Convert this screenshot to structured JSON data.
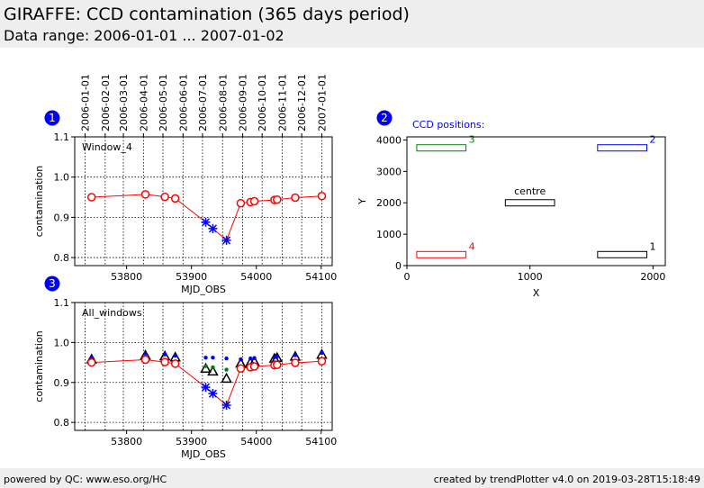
{
  "header": {
    "title": "GIRAFFE: CCD contamination (365 days period)",
    "subtitle": "Data range: 2006-01-01 ... 2007-01-02"
  },
  "footer": {
    "left": "powered by QC: www.eso.org/HC",
    "right": "created by trendPlotter v4.0 on 2019-03-28T15:18:49"
  },
  "colors": {
    "red": "#ff0000",
    "blue": "#0000ff",
    "green": "#008000",
    "black": "#000000",
    "badge": "#0000ff"
  },
  "chart_data": [
    {
      "badge": "1",
      "type": "scatter",
      "label": "Window_4",
      "xlabel": "MJD_OBS",
      "ylabel": "contamination",
      "xlim": [
        53720,
        54117
      ],
      "ylim": [
        0.78,
        1.1
      ],
      "x_ticks": [
        53800,
        53900,
        54000,
        54100
      ],
      "y_ticks": [
        0.8,
        0.9,
        1.0,
        1.1
      ],
      "y_tick_labels": [
        "0.8",
        "0.9",
        "1.0",
        "1.1"
      ],
      "top_date_ticks": [
        {
          "mjd": 53736,
          "label": "2006-01-01"
        },
        {
          "mjd": 53767,
          "label": "2006-02-01"
        },
        {
          "mjd": 53795,
          "label": "2006-03-01"
        },
        {
          "mjd": 53826,
          "label": "2006-04-01"
        },
        {
          "mjd": 53856,
          "label": "2006-05-01"
        },
        {
          "mjd": 53887,
          "label": "2006-06-01"
        },
        {
          "mjd": 53917,
          "label": "2006-07-01"
        },
        {
          "mjd": 53948,
          "label": "2006-08-01"
        },
        {
          "mjd": 53979,
          "label": "2006-09-01"
        },
        {
          "mjd": 54009,
          "label": "2006-10-01"
        },
        {
          "mjd": 54040,
          "label": "2006-11-01"
        },
        {
          "mjd": 54070,
          "label": "2006-12-01"
        },
        {
          "mjd": 54101,
          "label": "2007-01-01"
        }
      ],
      "series": [
        {
          "name": "red",
          "color": "#ff0000",
          "marker": "circle",
          "line": true,
          "x": [
            53746,
            53829,
            53859,
            53875,
            53976,
            53991,
            53997,
            54028,
            54032,
            54060,
            54101
          ],
          "y": [
            0.95,
            0.957,
            0.951,
            0.947,
            0.935,
            0.938,
            0.94,
            0.943,
            0.944,
            0.949,
            0.953
          ]
        },
        {
          "name": "blue",
          "color": "#0000ff",
          "marker": "star",
          "line": true,
          "x": [
            53922,
            53933,
            53954
          ],
          "y": [
            0.888,
            0.872,
            0.843
          ]
        }
      ],
      "connector": {
        "x": [
          53875,
          53922,
          53933,
          53954,
          53976
        ],
        "y": [
          0.947,
          0.888,
          0.872,
          0.843,
          0.935
        ]
      }
    },
    {
      "badge": "2",
      "type": "scatter",
      "label": "CCD positions:",
      "xlabel": "X",
      "ylabel": "Y",
      "xlim": [
        0,
        2100
      ],
      "ylim": [
        0,
        4100
      ],
      "x_ticks": [
        0,
        1000,
        2000
      ],
      "y_ticks": [
        0,
        1000,
        2000,
        3000,
        4000
      ],
      "boxes": [
        {
          "x0": 1550,
          "y0": 250,
          "x1": 1950,
          "y1": 450,
          "color": "#000000",
          "label": "1"
        },
        {
          "x0": 1550,
          "y0": 3650,
          "x1": 1950,
          "y1": 3850,
          "color": "#0000ff",
          "label": "2"
        },
        {
          "x0": 80,
          "y0": 3650,
          "x1": 480,
          "y1": 3850,
          "color": "#008000",
          "label": "3"
        },
        {
          "x0": 80,
          "y0": 250,
          "x1": 480,
          "y1": 450,
          "color": "#ff0000",
          "label": "4"
        },
        {
          "x0": 800,
          "y0": 1900,
          "x1": 1200,
          "y1": 2100,
          "color": "#000000",
          "label": "centre"
        }
      ]
    },
    {
      "badge": "3",
      "type": "scatter",
      "label": "All_windows",
      "xlabel": "MJD_OBS",
      "ylabel": "contamination",
      "xlim": [
        53720,
        54117
      ],
      "ylim": [
        0.78,
        1.1
      ],
      "x_ticks": [
        53800,
        53900,
        54000,
        54100
      ],
      "y_ticks": [
        0.8,
        0.9,
        1.0,
        1.1
      ],
      "y_tick_labels": [
        "0.8",
        "0.9",
        "1.0",
        "1.1"
      ],
      "series": [
        {
          "name": "window_1",
          "color": "#000000",
          "marker": "triangle",
          "line": false,
          "x": [
            53746,
            53829,
            53859,
            53875,
            53922,
            53933,
            53954,
            53976,
            53991,
            53997,
            54028,
            54032,
            54060,
            54101
          ],
          "y": [
            0.958,
            0.968,
            0.966,
            0.963,
            0.935,
            0.928,
            0.91,
            0.948,
            0.95,
            0.952,
            0.96,
            0.962,
            0.965,
            0.97
          ]
        },
        {
          "name": "window_2",
          "color": "#0000ff",
          "marker": "dot",
          "line": false,
          "x": [
            53746,
            53829,
            53859,
            53875,
            53922,
            53933,
            53954,
            53976,
            53991,
            53997,
            54028,
            54032,
            54060,
            54101
          ],
          "y": [
            0.962,
            0.972,
            0.97,
            0.967,
            0.962,
            0.962,
            0.96,
            0.958,
            0.96,
            0.961,
            0.963,
            0.965,
            0.968,
            0.974
          ]
        },
        {
          "name": "window_3",
          "color": "#008000",
          "marker": "dot",
          "line": false,
          "x": [
            53746,
            53829,
            53859,
            53875,
            53922,
            53933,
            53954,
            53976,
            53991,
            53997,
            54028,
            54032,
            54060,
            54101
          ],
          "y": [
            0.947,
            0.953,
            0.95,
            0.946,
            0.941,
            0.938,
            0.932,
            0.938,
            0.939,
            0.94,
            0.944,
            0.945,
            0.948,
            0.951
          ]
        },
        {
          "name": "red",
          "color": "#ff0000",
          "marker": "circle",
          "line": true,
          "x": [
            53746,
            53829,
            53859,
            53875,
            53976,
            53991,
            53997,
            54028,
            54032,
            54060,
            54101
          ],
          "y": [
            0.95,
            0.957,
            0.951,
            0.947,
            0.935,
            0.938,
            0.94,
            0.943,
            0.944,
            0.949,
            0.953
          ]
        },
        {
          "name": "blue",
          "color": "#0000ff",
          "marker": "star",
          "line": true,
          "x": [
            53922,
            53933,
            53954
          ],
          "y": [
            0.888,
            0.872,
            0.843
          ]
        }
      ],
      "connector": {
        "x": [
          53875,
          53922,
          53933,
          53954,
          53976
        ],
        "y": [
          0.947,
          0.888,
          0.872,
          0.843,
          0.935
        ]
      }
    }
  ]
}
